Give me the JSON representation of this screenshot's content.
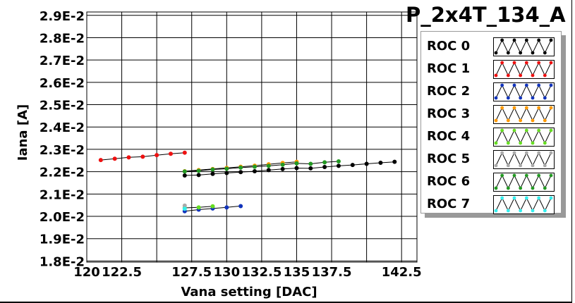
{
  "chart_data": {
    "type": "line",
    "title": "P_2x4T_134_A",
    "xlabel": "Vana setting [DAC]",
    "ylabel": "Iana [A]",
    "xlim": [
      120,
      143.6
    ],
    "ylim": [
      0.01795,
      0.02915
    ],
    "x_ticks": [
      120,
      122.5,
      127.5,
      130,
      132.5,
      135,
      137.5,
      142.5
    ],
    "x_tick_labels": [
      "120",
      "122.5",
      "127.5",
      "130",
      "132.5",
      "135",
      "137.5",
      "142.5"
    ],
    "y_ticks": [
      0.018,
      0.019,
      0.02,
      0.021,
      0.022,
      0.023,
      0.024,
      0.025,
      0.026,
      0.027,
      0.028,
      0.029
    ],
    "y_tick_labels": [
      "1.8E-2",
      "1.9E-2",
      "2.0E-2",
      "2.1E-2",
      "2.2E-2",
      "2.3E-2",
      "2.4E-2",
      "2.5E-2",
      "2.6E-2",
      "2.7E-2",
      "2.8E-2",
      "2.9E-2"
    ],
    "grid": true,
    "legend_position": "right",
    "series": [
      {
        "name": "ROC 0",
        "color": "#000000",
        "x": [
          127,
          128,
          129,
          130,
          131,
          132,
          133,
          134,
          135,
          136,
          137,
          138,
          139,
          140,
          141,
          142
        ],
        "y": [
          0.02183,
          0.02185,
          0.0219,
          0.02194,
          0.02198,
          0.02202,
          0.02207,
          0.02212,
          0.02216,
          0.02215,
          0.02221,
          0.02226,
          0.0223,
          0.02235,
          0.0224,
          0.02244
        ]
      },
      {
        "name": "ROC 1",
        "color": "#ee1111",
        "x": [
          121,
          122,
          123,
          124,
          125,
          126,
          127
        ],
        "y": [
          0.02252,
          0.02258,
          0.02264,
          0.02267,
          0.02274,
          0.0228,
          0.02285
        ]
      },
      {
        "name": "ROC 2",
        "color": "#1133bb",
        "x": [
          127,
          128,
          129,
          130,
          131
        ],
        "y": [
          0.02023,
          0.0203,
          0.02035,
          0.0204,
          0.02046
        ]
      },
      {
        "name": "ROC 3",
        "color": "#ff9900",
        "x": [
          127,
          128,
          129,
          130,
          131,
          132,
          133,
          134,
          135
        ],
        "y": [
          0.02202,
          0.02207,
          0.02212,
          0.02217,
          0.02222,
          0.02227,
          0.02233,
          0.02239,
          0.02244
        ]
      },
      {
        "name": "ROC 4",
        "color": "#66dd22",
        "x": [
          127,
          128,
          129
        ],
        "y": [
          0.02038,
          0.0204,
          0.02045
        ]
      },
      {
        "name": "ROC 5",
        "color": "#aaaaaa",
        "x": [
          127
        ],
        "y": [
          0.02048
        ]
      },
      {
        "name": "ROC 6",
        "color": "#229922",
        "x": [
          127,
          128,
          129,
          130,
          131,
          132,
          133,
          134,
          135,
          136,
          137,
          138
        ],
        "y": [
          0.02201,
          0.02204,
          0.0221,
          0.02213,
          0.02218,
          0.02222,
          0.02226,
          0.02231,
          0.02237,
          0.02235,
          0.02242,
          0.02246
        ]
      },
      {
        "name": "ROC 7",
        "color": "#33eeee",
        "x": [
          127
        ],
        "y": [
          0.02034
        ]
      }
    ]
  }
}
